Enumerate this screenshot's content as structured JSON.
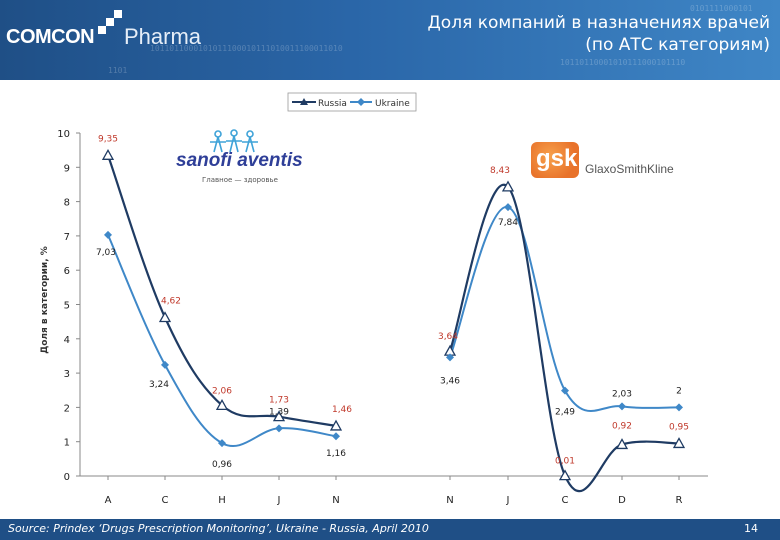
{
  "header": {
    "logo_brand": "COMCON",
    "logo_product": "Pharma",
    "binary_1": "1011011000101011100010111010011100011010",
    "binary_2": "10110110001010111000101110",
    "binary_3": "1101",
    "binary_4": "0101111000101",
    "title_line1": "Доля компаний в назначениях врачей",
    "title_line2": "(по АТС категориям)"
  },
  "colors": {
    "header_bg": "#2a66a8",
    "russia": "#1f3b63",
    "ukraine": "#3f88c8",
    "russia_label": "#c0392b",
    "ukraine_label": "#222222"
  },
  "logos": {
    "sanofi": "sanofi aventis",
    "sanofi_sub": "Главное — здоровье",
    "gsk": "gsk",
    "gsk_name": "GlaxoSmithKline"
  },
  "chart_data": {
    "type": "line",
    "ylabel": "Доля в категории, %",
    "ylim": [
      0,
      10
    ],
    "yticks": [
      "0",
      "1",
      "2",
      "3",
      "4",
      "5",
      "6",
      "7",
      "8",
      "9",
      "10"
    ],
    "legend": {
      "placement": "top-center"
    },
    "panels": [
      {
        "categories": [
          "A",
          "C",
          "H",
          "J",
          "N"
        ],
        "series": [
          {
            "name": "Russia",
            "values": [
              9.35,
              4.62,
              2.06,
              1.73,
              1.46
            ],
            "labels": [
              "9,35",
              "4,62",
              "2,06",
              "1,73",
              "1,46"
            ]
          },
          {
            "name": "Ukraine",
            "values": [
              7.03,
              3.24,
              0.96,
              1.39,
              1.16
            ],
            "labels": [
              "7,03",
              "3,24",
              "0,96",
              "1,39",
              "1,16"
            ]
          }
        ]
      },
      {
        "categories": [
          "N",
          "J",
          "C",
          "D",
          "R"
        ],
        "series": [
          {
            "name": "Russia",
            "values": [
              3.64,
              8.43,
              0.01,
              0.92,
              0.95
            ],
            "labels": [
              "3,64",
              "8,43",
              "0,01",
              "0,92",
              "0,95"
            ]
          },
          {
            "name": "Ukraine",
            "values": [
              3.46,
              7.84,
              2.49,
              2.03,
              2.0
            ],
            "labels": [
              "3,46",
              "7,84",
              "2,49",
              "2,03",
              "2"
            ]
          }
        ]
      }
    ]
  },
  "footer": {
    "source": "Source: Prindex ‘Drugs Prescription Monitoring’, Ukraine - Russia, April 2010",
    "page": "14"
  }
}
